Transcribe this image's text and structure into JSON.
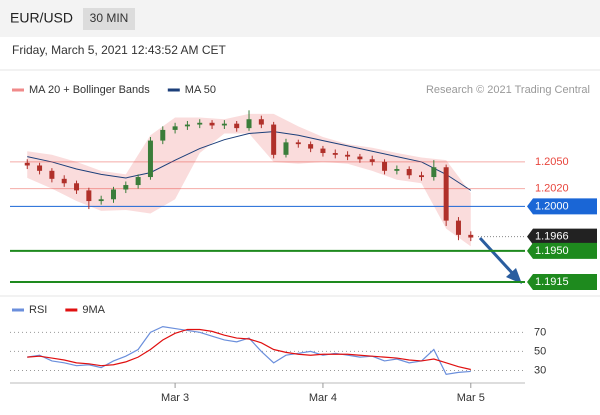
{
  "header": {
    "symbol": "EUR/USD",
    "interval": "30 MIN",
    "timestamp": "Friday, March 5, 2021 12:43:52 AM CET"
  },
  "chart_data": [
    {
      "type": "candlestick",
      "credit": "Research © 2021 Trading Central",
      "xlim": [
        -2.8,
        80.8
      ],
      "ylim": [
        1.1906,
        1.2114
      ],
      "xticks": [
        {
          "value": 24,
          "label": "Mar 3"
        },
        {
          "value": 48,
          "label": "Mar 4"
        },
        {
          "value": 72,
          "label": "Mar 5"
        }
      ],
      "up_color": "#3a7d3a",
      "down_color": "#b0302a",
      "x": [
        0,
        2,
        4,
        6,
        8,
        10,
        12,
        14,
        16,
        18,
        20,
        22,
        24,
        26,
        28,
        30,
        32,
        34,
        36,
        38,
        40,
        42,
        44,
        46,
        48,
        50,
        52,
        54,
        56,
        58,
        60,
        62,
        64,
        66,
        68,
        70,
        72
      ],
      "open": [
        1.2049,
        1.2046,
        1.204,
        1.2031,
        1.2026,
        1.2018,
        1.2006,
        1.2008,
        1.2019,
        1.2024,
        1.2033,
        1.2074,
        1.2086,
        1.209,
        1.2092,
        1.2094,
        1.2091,
        1.2093,
        1.2088,
        1.2098,
        1.2092,
        1.2058,
        1.2072,
        1.207,
        1.2065,
        1.206,
        1.2058,
        1.2056,
        1.2053,
        1.205,
        1.204,
        1.2042,
        1.2035,
        1.2033,
        1.2044,
        1.1984,
        1.1968
      ],
      "high": [
        1.2053,
        1.2049,
        1.2043,
        1.2035,
        1.2029,
        1.2021,
        1.2012,
        1.2022,
        1.2028,
        1.2036,
        1.2078,
        1.209,
        1.2094,
        1.2096,
        1.2098,
        1.2097,
        1.2097,
        1.2096,
        1.2108,
        1.2102,
        1.2095,
        1.2076,
        1.2075,
        1.2073,
        1.2068,
        1.2064,
        1.2062,
        1.2059,
        1.2057,
        1.2053,
        1.2046,
        1.2045,
        1.2039,
        1.2052,
        1.2047,
        1.1988,
        1.1972
      ],
      "low": [
        1.2042,
        1.2036,
        1.2027,
        1.2022,
        1.2014,
        1.1997,
        1.2002,
        1.2004,
        1.2015,
        1.202,
        1.203,
        1.207,
        1.2082,
        1.2086,
        1.2088,
        1.2087,
        1.2087,
        1.2084,
        1.2085,
        1.2088,
        1.2054,
        1.2055,
        1.2066,
        1.2061,
        1.2056,
        1.2054,
        1.2052,
        1.2049,
        1.2046,
        1.2036,
        1.2036,
        1.2031,
        1.2029,
        1.2029,
        1.1978,
        1.1962,
        1.1961
      ],
      "close": [
        1.2046,
        1.204,
        1.2031,
        1.2026,
        1.2018,
        1.2006,
        1.2008,
        1.2019,
        1.2024,
        1.2033,
        1.2074,
        1.2086,
        1.209,
        1.2092,
        1.2094,
        1.2091,
        1.2093,
        1.2088,
        1.2098,
        1.2092,
        1.2058,
        1.2072,
        1.207,
        1.2065,
        1.206,
        1.2058,
        1.2056,
        1.2053,
        1.205,
        1.204,
        1.2042,
        1.2035,
        1.2033,
        1.2044,
        1.1984,
        1.1968,
        1.1965
      ],
      "overlays": [
        {
          "name": "MA 20 + Bollinger Bands",
          "color": "#f08a8a",
          "x": [
            0,
            4,
            8,
            12,
            16,
            20,
            24,
            28,
            32,
            36,
            40,
            44,
            48,
            52,
            56,
            60,
            64,
            68,
            72
          ],
          "upper": [
            1.2062,
            1.2058,
            1.205,
            1.204,
            1.2036,
            1.208,
            1.21,
            1.21,
            1.2098,
            1.2104,
            1.2104,
            1.209,
            1.2078,
            1.207,
            1.2066,
            1.206,
            1.2055,
            1.2052,
            1.2015
          ],
          "lower": [
            1.2032,
            1.202,
            1.2006,
            1.1995,
            1.1996,
            1.1992,
            1.2008,
            1.206,
            1.2082,
            1.2082,
            1.205,
            1.2048,
            1.205,
            1.2048,
            1.204,
            1.203,
            1.2026,
            1.1975,
            1.1955
          ]
        },
        {
          "name": "MA 50",
          "color": "#1c3f7a",
          "x": [
            0,
            4,
            8,
            12,
            16,
            20,
            24,
            28,
            32,
            36,
            40,
            44,
            48,
            52,
            56,
            60,
            64,
            68,
            72
          ],
          "values": [
            1.2056,
            1.205,
            1.2042,
            1.2036,
            1.2032,
            1.2038,
            1.2052,
            1.2065,
            1.2075,
            1.2082,
            1.2084,
            1.208,
            1.2074,
            1.2068,
            1.2062,
            1.2056,
            1.205,
            1.2036,
            1.2018
          ]
        }
      ],
      "levels": [
        {
          "value": 1.205,
          "label": "1.2050",
          "color": "#e8453c",
          "style": "text",
          "line": "solid"
        },
        {
          "value": 1.202,
          "label": "1.2020",
          "color": "#e8453c",
          "style": "text",
          "line": "solid"
        },
        {
          "value": 1.2,
          "label": "1.2000",
          "color": "#1a66d6",
          "style": "box",
          "line": "solid"
        },
        {
          "value": 1.1966,
          "label": "1.1966",
          "color": "#222222",
          "style": "box",
          "line": "dotted"
        },
        {
          "value": 1.195,
          "label": "1.1950",
          "color": "#1e8a1e",
          "style": "box",
          "line": "thick"
        },
        {
          "value": 1.1915,
          "label": "1.1915",
          "color": "#1e8a1e",
          "style": "box",
          "line": "thick"
        }
      ]
    },
    {
      "type": "line",
      "xlim": [
        -2.8,
        80.8
      ],
      "ylim": [
        20,
        84
      ],
      "yticks": [
        30,
        50,
        70
      ],
      "x": [
        0,
        2,
        4,
        6,
        8,
        10,
        12,
        14,
        16,
        18,
        20,
        22,
        24,
        26,
        28,
        30,
        32,
        34,
        36,
        38,
        40,
        42,
        44,
        46,
        48,
        50,
        52,
        54,
        56,
        58,
        60,
        62,
        64,
        66,
        68,
        70,
        72
      ],
      "series": [
        {
          "name": "RSI",
          "color": "#6b8fdc",
          "values": [
            44,
            46,
            40,
            38,
            35,
            36,
            33,
            40,
            45,
            52,
            70,
            76,
            74,
            72,
            70,
            66,
            62,
            60,
            64,
            50,
            38,
            46,
            48,
            50,
            46,
            48,
            46,
            44,
            45,
            40,
            42,
            38,
            40,
            52,
            26,
            28,
            29
          ]
        },
        {
          "name": "9MA",
          "color": "#e01010",
          "values": [
            44,
            45,
            43,
            41,
            38,
            37,
            35,
            36,
            39,
            44,
            52,
            62,
            69,
            73,
            73,
            71,
            67,
            64,
            63,
            59,
            52,
            49,
            47,
            46,
            47,
            47,
            47,
            46,
            45,
            44,
            43,
            41,
            40,
            42,
            38,
            34,
            31
          ]
        }
      ]
    }
  ]
}
